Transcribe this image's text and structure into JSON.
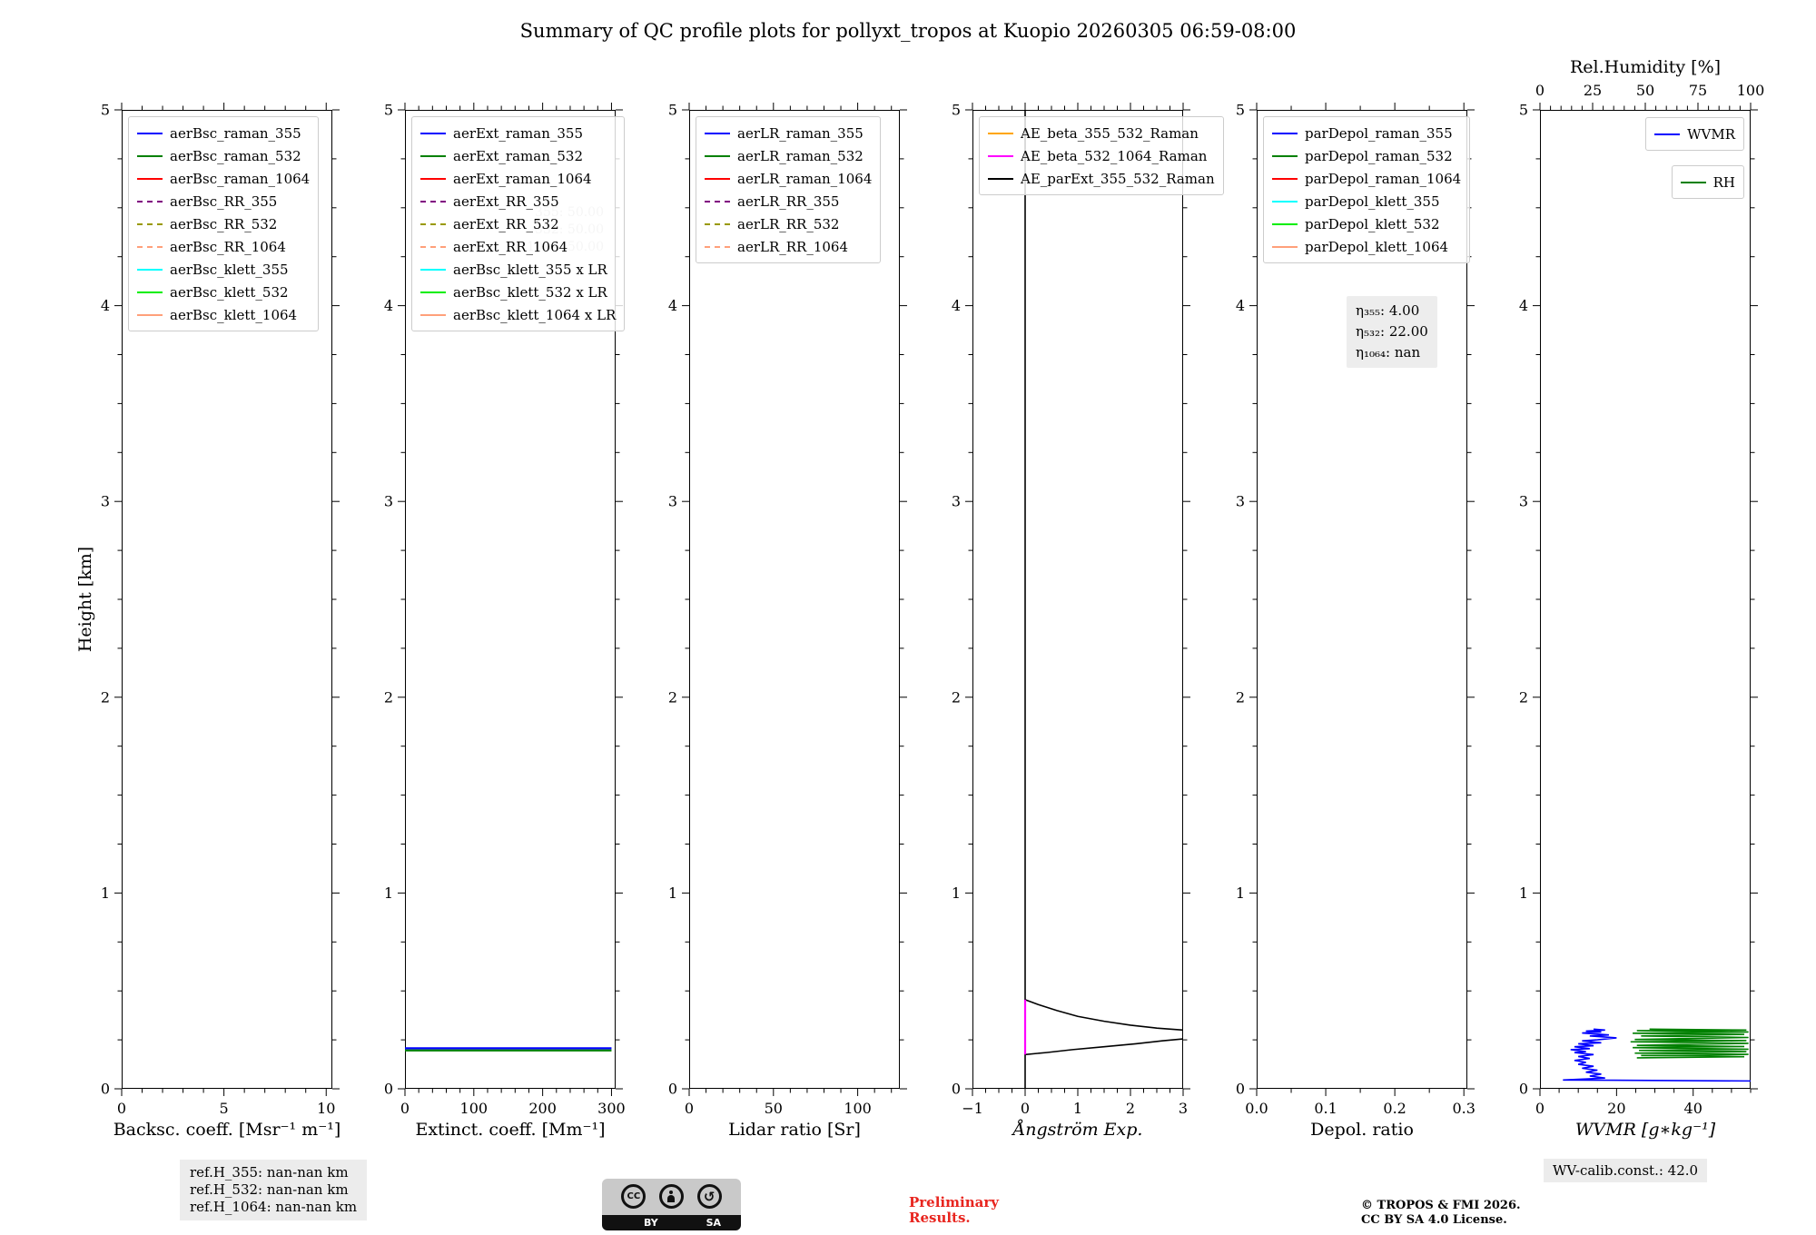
{
  "title": "Summary of QC profile plots for pollyxt_tropos at Kuopio 20260305 06:59-08:00",
  "ylabel": "Height [km]",
  "footer": {
    "ref_h_355": "ref.H_355: nan-nan km",
    "ref_h_532": "ref.H_532: nan-nan km",
    "ref_h_1064": "ref.H_1064: nan-nan km",
    "preliminary_line1": "Preliminary",
    "preliminary_line2": "Results.",
    "copyright_line1": "© TROPOS & FMI 2026.",
    "copyright_line2": "CC BY SA 4.0 License.",
    "wv_calib": "WV-calib.const.: 42.0",
    "cc_label": "CC",
    "cc_by": "BY",
    "cc_sa": "SA"
  },
  "chart_data": [
    {
      "id": "backscatter",
      "type": "line",
      "xlabel": "Backsc. coeff. [Msr⁻¹ m⁻¹]",
      "xlim": [
        0,
        10.3
      ],
      "xticks": [
        0,
        5,
        10
      ],
      "xtick_labels": [
        "0",
        "5",
        "10"
      ],
      "xminor": 1,
      "ylim": [
        0,
        5
      ],
      "yticks": [
        0,
        1,
        2,
        3,
        4,
        5
      ],
      "yminor": 0.25,
      "legend": [
        {
          "label": "aerBsc_raman_355",
          "color": "#0000ff",
          "dash": false
        },
        {
          "label": "aerBsc_raman_532",
          "color": "#008000",
          "dash": false
        },
        {
          "label": "aerBsc_raman_1064",
          "color": "#ff0000",
          "dash": false
        },
        {
          "label": "aerBsc_RR_355",
          "color": "#800080",
          "dash": true
        },
        {
          "label": "aerBsc_RR_532",
          "color": "#999900",
          "dash": true
        },
        {
          "label": "aerBsc_RR_1064",
          "color": "#ffa07a",
          "dash": true
        },
        {
          "label": "aerBsc_klett_355",
          "color": "#00ffff",
          "dash": false
        },
        {
          "label": "aerBsc_klett_532",
          "color": "#00ee00",
          "dash": false
        },
        {
          "label": "aerBsc_klett_1064",
          "color": "#ffa07a",
          "dash": false
        }
      ],
      "series": []
    },
    {
      "id": "extinction",
      "type": "line",
      "xlabel": "Extinct. coeff. [Mm⁻¹]",
      "xlim": [
        0,
        306
      ],
      "xticks": [
        0,
        100,
        200,
        300
      ],
      "xtick_labels": [
        "0",
        "100",
        "200",
        "300"
      ],
      "xminor": 20,
      "ylim": [
        0,
        5
      ],
      "yticks": [
        0,
        1,
        2,
        3,
        4,
        5
      ],
      "yminor": 0.25,
      "legend": [
        {
          "label": "aerExt_raman_355",
          "color": "#0000ff",
          "dash": false
        },
        {
          "label": "aerExt_raman_532",
          "color": "#008000",
          "dash": false
        },
        {
          "label": "aerExt_raman_1064",
          "color": "#ff0000",
          "dash": false
        },
        {
          "label": "aerExt_RR_355",
          "color": "#800080",
          "dash": true
        },
        {
          "label": "aerExt_RR_532",
          "color": "#999900",
          "dash": true
        },
        {
          "label": "aerExt_RR_1064",
          "color": "#ffa07a",
          "dash": true
        },
        {
          "label": "aerBsc_klett_355 x LR",
          "color": "#00ffff",
          "dash": false
        },
        {
          "label": "aerBsc_klett_532 x LR",
          "color": "#00ee00",
          "dash": false
        },
        {
          "label": "aerBsc_klett_1064 x LR",
          "color": "#ffa07a",
          "dash": false
        }
      ],
      "ghost_annotation": {
        "lines": [
          "355: 50.00",
          "532: 50.00",
          "1064: 50.00"
        ]
      },
      "series": [
        {
          "name": "aerExt_raman_355",
          "color": "#0000ff",
          "width": 2.2,
          "points": [
            [
              0,
              0.207
            ],
            [
              300,
              0.207
            ]
          ]
        },
        {
          "name": "aerExt_raman_532",
          "color": "#008000",
          "width": 2.2,
          "points": [
            [
              0,
              0.196
            ],
            [
              300,
              0.196
            ]
          ]
        }
      ]
    },
    {
      "id": "lidar-ratio",
      "type": "line",
      "xlabel": "Lidar ratio [Sr]",
      "xlim": [
        0,
        125
      ],
      "xticks": [
        0,
        50,
        100
      ],
      "xtick_labels": [
        "0",
        "50",
        "100"
      ],
      "xminor": 10,
      "ylim": [
        0,
        5
      ],
      "yticks": [
        0,
        1,
        2,
        3,
        4,
        5
      ],
      "yminor": 0.25,
      "legend": [
        {
          "label": "aerLR_raman_355",
          "color": "#0000ff",
          "dash": false
        },
        {
          "label": "aerLR_raman_532",
          "color": "#008000",
          "dash": false
        },
        {
          "label": "aerLR_raman_1064",
          "color": "#ff0000",
          "dash": false
        },
        {
          "label": "aerLR_RR_355",
          "color": "#800080",
          "dash": true
        },
        {
          "label": "aerLR_RR_532",
          "color": "#999900",
          "dash": true
        },
        {
          "label": "aerLR_RR_1064",
          "color": "#ffa07a",
          "dash": true
        }
      ],
      "series": []
    },
    {
      "id": "angstroem",
      "type": "line",
      "xlabel": "Ångström Exp.",
      "xlabel_italic": true,
      "xlim": [
        -1,
        3
      ],
      "xticks": [
        -1,
        0,
        1,
        2,
        3
      ],
      "xtick_labels": [
        "−1",
        "0",
        "1",
        "2",
        "3"
      ],
      "xminor": 0.25,
      "ylim": [
        0,
        5
      ],
      "yticks": [
        0,
        1,
        2,
        3,
        4,
        5
      ],
      "yminor": 0.25,
      "legend": [
        {
          "label": "AE_beta_355_532_Raman",
          "color": "#ffa500",
          "dash": false
        },
        {
          "label": "AE_beta_532_1064_Raman",
          "color": "#ff00ff",
          "dash": false
        },
        {
          "label": "AE_parExt_355_532_Raman",
          "color": "#000000",
          "dash": false
        }
      ],
      "series": [
        {
          "name": "AE_parExt_355_532_Raman_vertical",
          "color": "#000000",
          "width": 1.6,
          "points": [
            [
              0,
              5
            ],
            [
              0,
              0
            ]
          ]
        },
        {
          "name": "AE_parExt_upper_branch",
          "color": "#000000",
          "width": 1.6,
          "points": [
            [
              0,
              0.455
            ],
            [
              0.25,
              0.43
            ],
            [
              0.6,
              0.4
            ],
            [
              1.0,
              0.37
            ],
            [
              1.5,
              0.345
            ],
            [
              2.0,
              0.325
            ],
            [
              2.5,
              0.31
            ],
            [
              3,
              0.3
            ]
          ]
        },
        {
          "name": "AE_parExt_lower_branch",
          "color": "#000000",
          "width": 1.6,
          "points": [
            [
              0,
              0.175
            ],
            [
              0.4,
              0.185
            ],
            [
              0.9,
              0.2
            ],
            [
              1.5,
              0.215
            ],
            [
              2.1,
              0.23
            ],
            [
              2.6,
              0.245
            ],
            [
              3,
              0.255
            ]
          ]
        },
        {
          "name": "AE_beta_532_1064_Raman",
          "color": "#ff00ff",
          "width": 2.2,
          "points": [
            [
              0,
              0.455
            ],
            [
              0,
              0.175
            ]
          ]
        }
      ]
    },
    {
      "id": "depol",
      "type": "line",
      "xlabel": "Depol. ratio",
      "xlim": [
        0,
        0.305
      ],
      "xticks": [
        0,
        0.1,
        0.2,
        0.3
      ],
      "xtick_labels": [
        "0.0",
        "0.1",
        "0.2",
        "0.3"
      ],
      "xminor": 0.05,
      "ylim": [
        0,
        5
      ],
      "yticks": [
        0,
        1,
        2,
        3,
        4,
        5
      ],
      "yminor": 0.25,
      "legend": [
        {
          "label": "parDepol_raman_355",
          "color": "#0000ff",
          "dash": false
        },
        {
          "label": "parDepol_raman_532",
          "color": "#008000",
          "dash": false
        },
        {
          "label": "parDepol_raman_1064",
          "color": "#ff0000",
          "dash": false
        },
        {
          "label": "parDepol_klett_355",
          "color": "#00ffff",
          "dash": false
        },
        {
          "label": "parDepol_klett_532",
          "color": "#00ee00",
          "dash": false
        },
        {
          "label": "parDepol_klett_1064",
          "color": "#ffa07a",
          "dash": false
        }
      ],
      "annotation": {
        "lines": [
          "η₃₅₅: 4.00",
          "η₅₃₂: 22.00",
          "η₁₀₆₄: nan"
        ],
        "x": 99,
        "y": 205
      },
      "series": []
    },
    {
      "id": "wvmr",
      "type": "line",
      "xlabel": "WVMR [g∗kg⁻¹]",
      "xlabel_italic": true,
      "xlim": [
        0,
        55
      ],
      "xticks": [
        0,
        20,
        40
      ],
      "xtick_labels": [
        "0",
        "20",
        "40"
      ],
      "xminor": 5,
      "ylim": [
        0,
        5
      ],
      "yticks": [
        0,
        1,
        2,
        3,
        4,
        5
      ],
      "yminor": 0.25,
      "top_axis": {
        "label": "Rel.Humidity [%]",
        "xlim": [
          0,
          100
        ],
        "ticks": [
          0,
          25,
          50,
          75,
          100
        ],
        "tick_labels": [
          "0",
          "25",
          "50",
          "75",
          "100"
        ],
        "minor": 5
      },
      "legend": [
        {
          "label": "WVMR",
          "color": "#0000ff",
          "dash": false
        },
        {
          "label": "RH",
          "color": "#008000",
          "dash": false
        }
      ],
      "separate_boxes": true,
      "series": [
        {
          "name": "WVMR",
          "color": "#0000ff",
          "width": 1.6,
          "points": [
            [
              14,
              0.305
            ],
            [
              17,
              0.3
            ],
            [
              12,
              0.295
            ],
            [
              16,
              0.29
            ],
            [
              11,
              0.285
            ],
            [
              18,
              0.275
            ],
            [
              13,
              0.27
            ],
            [
              20,
              0.26
            ],
            [
              15,
              0.25
            ],
            [
              11,
              0.245
            ],
            [
              16,
              0.235
            ],
            [
              10,
              0.23
            ],
            [
              14,
              0.22
            ],
            [
              9,
              0.215
            ],
            [
              13,
              0.205
            ],
            [
              8,
              0.2
            ],
            [
              12,
              0.19
            ],
            [
              9,
              0.185
            ],
            [
              14,
              0.175
            ],
            [
              10,
              0.165
            ],
            [
              13,
              0.155
            ],
            [
              9,
              0.145
            ],
            [
              12,
              0.135
            ],
            [
              10,
              0.125
            ],
            [
              14,
              0.115
            ],
            [
              11,
              0.105
            ],
            [
              15,
              0.095
            ],
            [
              12,
              0.085
            ],
            [
              16,
              0.075
            ],
            [
              13,
              0.065
            ],
            [
              17,
              0.055
            ],
            [
              12,
              0.05
            ],
            [
              6,
              0.045
            ],
            [
              55,
              0.04
            ]
          ]
        },
        {
          "name": "RH",
          "color": "#008000",
          "width": 1.6,
          "axis": "top",
          "points": [
            [
              52,
              0.305
            ],
            [
              98,
              0.3
            ],
            [
              46,
              0.297
            ],
            [
              99,
              0.29
            ],
            [
              44,
              0.284
            ],
            [
              97,
              0.278
            ],
            [
              48,
              0.27
            ],
            [
              99,
              0.262
            ],
            [
              45,
              0.252
            ],
            [
              98,
              0.246
            ],
            [
              43,
              0.24
            ],
            [
              99,
              0.232
            ],
            [
              46,
              0.222
            ],
            [
              97,
              0.216
            ],
            [
              44,
              0.21
            ],
            [
              99,
              0.202
            ],
            [
              47,
              0.196
            ],
            [
              98,
              0.19
            ],
            [
              45,
              0.182
            ],
            [
              99,
              0.176
            ],
            [
              48,
              0.17
            ],
            [
              97,
              0.164
            ],
            [
              46,
              0.158
            ]
          ]
        }
      ]
    }
  ]
}
